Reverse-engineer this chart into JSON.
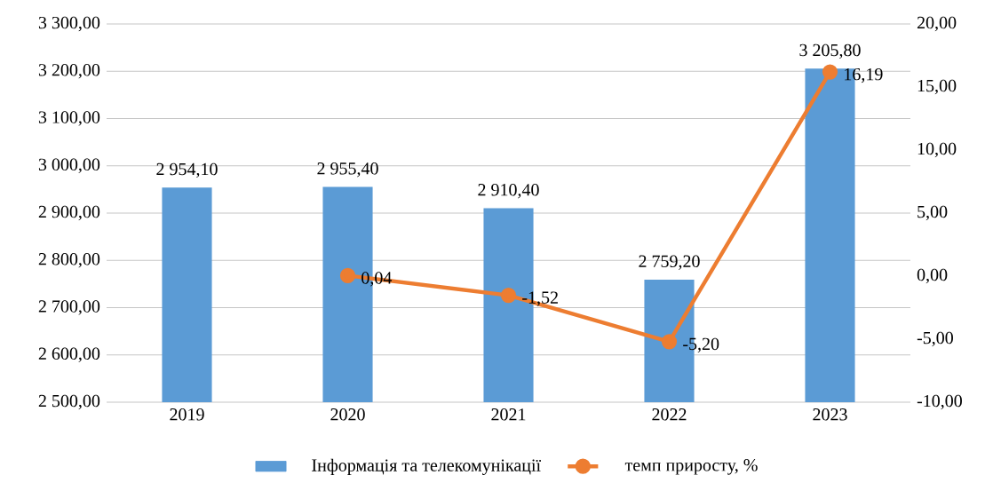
{
  "chart_data": {
    "type": "bar",
    "categories": [
      "2019",
      "2020",
      "2021",
      "2022",
      "2023"
    ],
    "series": [
      {
        "name": "Інформація та телекомунікації",
        "color": "#5b9bd5",
        "values": [
          2954.1,
          2955.4,
          2910.4,
          2759.2,
          3205.8
        ],
        "value_labels": [
          "2 954,10",
          "2 955,40",
          "2 910,40",
          "2 759,20",
          "3 205,80"
        ]
      },
      {
        "name": "темп приросту, %",
        "type": "line",
        "axis": "y2",
        "color": "#ed7d31",
        "values": [
          null,
          0.04,
          -1.52,
          -5.2,
          16.19
        ],
        "value_labels": [
          null,
          "0,04",
          "-1,52",
          "-5,20",
          "16,19"
        ]
      }
    ],
    "marker": "circle",
    "ylim": [
      2500,
      3300
    ],
    "yticks": [
      {
        "value": 2500,
        "label": "2 500,00"
      },
      {
        "value": 2600,
        "label": "2 600,00"
      },
      {
        "value": 2700,
        "label": "2 700,00"
      },
      {
        "value": 2800,
        "label": "2 800,00"
      },
      {
        "value": 2900,
        "label": "2 900,00"
      },
      {
        "value": 3000,
        "label": "3 000,00"
      },
      {
        "value": 3100,
        "label": "3 100,00"
      },
      {
        "value": 3200,
        "label": "3 200,00"
      },
      {
        "value": 3300,
        "label": "3 300,00"
      }
    ],
    "y2lim": [
      -10,
      20
    ],
    "y2ticks": [
      {
        "value": -10,
        "label": "-10,00"
      },
      {
        "value": -5,
        "label": "-5,00"
      },
      {
        "value": 0,
        "label": "0,00"
      },
      {
        "value": 5,
        "label": "5,00"
      },
      {
        "value": 10,
        "label": "10,00"
      },
      {
        "value": 15,
        "label": "15,00"
      },
      {
        "value": 20,
        "label": "20,00"
      }
    ],
    "grid": "y",
    "legend": "bottom"
  }
}
